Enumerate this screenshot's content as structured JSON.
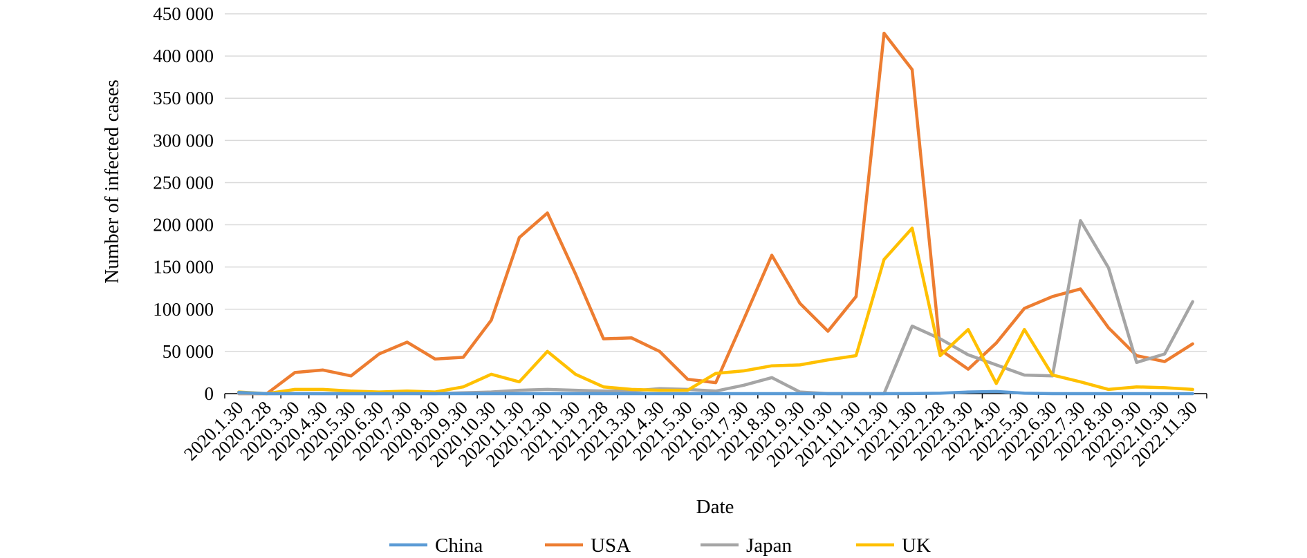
{
  "chart_data": {
    "type": "line",
    "xlabel": "Date",
    "ylabel": "Number of infected cases",
    "ylim": [
      0,
      450000
    ],
    "yticks": [
      0,
      50000,
      100000,
      150000,
      200000,
      250000,
      300000,
      350000,
      400000,
      450000
    ],
    "ytick_labels": [
      "0",
      "50 000",
      "100 000",
      "150 000",
      "200 000",
      "250 000",
      "300 000",
      "350 000",
      "400 000",
      "450 000"
    ],
    "grid": "horizontal",
    "legend_position": "bottom",
    "categories": [
      "2020.1.30",
      "2020.2.28",
      "2020.3.30",
      "2020.4.30",
      "2020.5.30",
      "2020.6.30",
      "2020.7.30",
      "2020.8.30",
      "2020.9.30",
      "2020.10.30",
      "2020.11.30",
      "2020.12.30",
      "2021.1.30",
      "2021.2.28",
      "2021.3.30",
      "2021.4.30",
      "2021.5.30",
      "2021.6.30",
      "2021.7.30",
      "2021.8.30",
      "2021.9.30",
      "2021.10.30",
      "2021.11.30",
      "2021.12.30",
      "2022.1.30",
      "2022.2.28",
      "2022.3.30",
      "2022.4.30",
      "2022.5.30",
      "2022.6.30",
      "2022.7.30",
      "2022.8.30",
      "2022.9.30",
      "2022.10.30",
      "2022.11.30"
    ],
    "series": [
      {
        "name": "China",
        "color": "#5B9BD5",
        "values": [
          1500,
          0,
          100,
          0,
          0,
          0,
          100,
          0,
          0,
          0,
          0,
          0,
          0,
          0,
          0,
          0,
          0,
          0,
          0,
          0,
          0,
          0,
          0,
          0,
          100,
          500,
          2000,
          2500,
          500,
          0,
          0,
          0,
          0,
          0,
          0
        ]
      },
      {
        "name": "USA",
        "color": "#ED7D31",
        "values": [
          0,
          0,
          25000,
          28000,
          21000,
          47000,
          61000,
          41000,
          43000,
          87000,
          185000,
          214000,
          142000,
          65000,
          66000,
          50000,
          17000,
          13000,
          88000,
          164000,
          107000,
          74000,
          115000,
          427000,
          384000,
          52000,
          29000,
          60000,
          101000,
          115000,
          124000,
          78000,
          45000,
          38000,
          59000
        ]
      },
      {
        "name": "Japan",
        "color": "#A5A5A5",
        "values": [
          0,
          0,
          0,
          0,
          0,
          0,
          0,
          0,
          1000,
          2000,
          4000,
          5000,
          4000,
          3000,
          3000,
          6000,
          5000,
          3000,
          10000,
          19000,
          2000,
          0,
          0,
          0,
          80000,
          65000,
          46000,
          34000,
          22000,
          21000,
          205000,
          149000,
          37000,
          47000,
          109000
        ]
      },
      {
        "name": "UK",
        "color": "#FFC000",
        "values": [
          2000,
          0,
          5000,
          5000,
          3000,
          2000,
          3000,
          2000,
          8000,
          23000,
          14000,
          50000,
          23000,
          8000,
          5000,
          4000,
          4000,
          24000,
          27000,
          33000,
          34000,
          40000,
          45000,
          159000,
          196000,
          45000,
          76000,
          12000,
          76000,
          22000,
          14000,
          5000,
          8000,
          7000,
          5000
        ]
      }
    ]
  }
}
